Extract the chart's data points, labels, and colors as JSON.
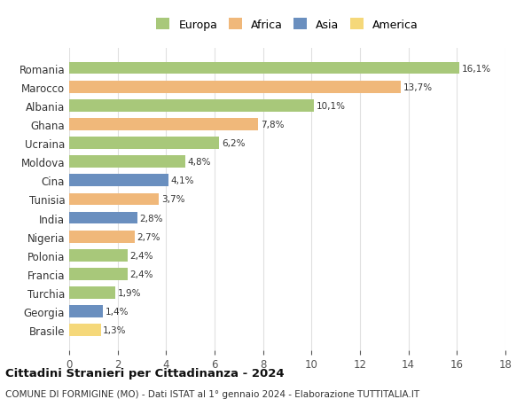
{
  "countries": [
    "Romania",
    "Marocco",
    "Albania",
    "Ghana",
    "Ucraina",
    "Moldova",
    "Cina",
    "Tunisia",
    "India",
    "Nigeria",
    "Polonia",
    "Francia",
    "Turchia",
    "Georgia",
    "Brasile"
  ],
  "values": [
    16.1,
    13.7,
    10.1,
    7.8,
    6.2,
    4.8,
    4.1,
    3.7,
    2.8,
    2.7,
    2.4,
    2.4,
    1.9,
    1.4,
    1.3
  ],
  "labels": [
    "16,1%",
    "13,7%",
    "10,1%",
    "7,8%",
    "6,2%",
    "4,8%",
    "4,1%",
    "3,7%",
    "2,8%",
    "2,7%",
    "2,4%",
    "2,4%",
    "1,9%",
    "1,4%",
    "1,3%"
  ],
  "colors": [
    "#a8c87a",
    "#f0b87a",
    "#a8c87a",
    "#f0b87a",
    "#a8c87a",
    "#a8c87a",
    "#6a8fbf",
    "#f0b87a",
    "#6a8fbf",
    "#f0b87a",
    "#a8c87a",
    "#a8c87a",
    "#a8c87a",
    "#6a8fbf",
    "#f5d87a"
  ],
  "legend_labels": [
    "Europa",
    "Africa",
    "Asia",
    "America"
  ],
  "legend_colors": [
    "#a8c87a",
    "#f0b87a",
    "#6a8fbf",
    "#f5d87a"
  ],
  "title": "Cittadini Stranieri per Cittadinanza - 2024",
  "subtitle": "COMUNE DI FORMIGINE (MO) - Dati ISTAT al 1° gennaio 2024 - Elaborazione TUTTITALIA.IT",
  "xlim": [
    0,
    18
  ],
  "xticks": [
    0,
    2,
    4,
    6,
    8,
    10,
    12,
    14,
    16,
    18
  ],
  "background_color": "#ffffff",
  "grid_color": "#e0e0e0"
}
